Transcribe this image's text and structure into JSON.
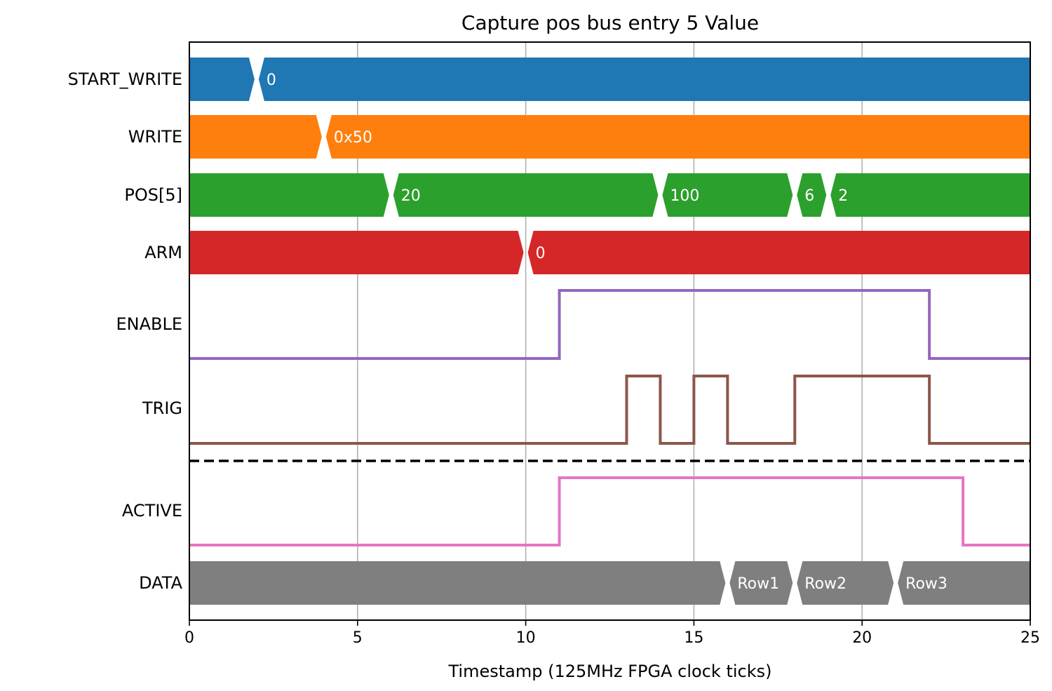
{
  "chart_data": {
    "type": "timing-diagram",
    "title": "Capture pos bus entry 5 Value",
    "xlabel": "Timestamp (125MHz FPGA clock ticks)",
    "xlim": [
      0,
      25
    ],
    "xticks": [
      0,
      5,
      10,
      15,
      20,
      25
    ],
    "grid": "vertical",
    "signals": [
      {
        "name": "START_WRITE",
        "kind": "bus",
        "color": "#1f77b4",
        "segments": [
          {
            "start": 0,
            "end": 2,
            "label": ""
          },
          {
            "start": 2,
            "end": 25,
            "label": "0"
          }
        ]
      },
      {
        "name": "WRITE",
        "kind": "bus",
        "color": "#ff7f0e",
        "segments": [
          {
            "start": 0,
            "end": 4,
            "label": ""
          },
          {
            "start": 4,
            "end": 25,
            "label": "0x50"
          }
        ]
      },
      {
        "name": "POS[5]",
        "kind": "bus",
        "color": "#2ca02c",
        "segments": [
          {
            "start": 0,
            "end": 6,
            "label": ""
          },
          {
            "start": 6,
            "end": 14,
            "label": "20"
          },
          {
            "start": 14,
            "end": 18,
            "label": "100"
          },
          {
            "start": 18,
            "end": 19,
            "label": "6"
          },
          {
            "start": 19,
            "end": 25,
            "label": "2"
          }
        ]
      },
      {
        "name": "ARM",
        "kind": "bus",
        "color": "#d62728",
        "segments": [
          {
            "start": 0,
            "end": 10,
            "label": ""
          },
          {
            "start": 10,
            "end": 25,
            "label": "0"
          }
        ]
      },
      {
        "name": "ENABLE",
        "kind": "bit",
        "color": "#9467bd",
        "transitions": [
          [
            0,
            0
          ],
          [
            11,
            1
          ],
          [
            22,
            0
          ]
        ]
      },
      {
        "name": "TRIG",
        "kind": "bit",
        "color": "#8c564b",
        "transitions": [
          [
            0,
            0
          ],
          [
            13,
            1
          ],
          [
            14,
            0
          ],
          [
            15,
            1
          ],
          [
            16,
            0
          ],
          [
            18,
            1
          ],
          [
            22,
            0
          ]
        ]
      },
      {
        "name": "ACTIVE",
        "kind": "bit",
        "color": "#e377c2",
        "transitions": [
          [
            0,
            0
          ],
          [
            11,
            1
          ],
          [
            23,
            0
          ]
        ]
      },
      {
        "name": "DATA",
        "kind": "bus",
        "color": "#7f7f7f",
        "segments": [
          {
            "start": 0,
            "end": 16,
            "label": ""
          },
          {
            "start": 16,
            "end": 18,
            "label": "Row1"
          },
          {
            "start": 18,
            "end": 21,
            "label": "Row2"
          },
          {
            "start": 21,
            "end": 25,
            "label": "Row3"
          }
        ]
      }
    ],
    "separator": {
      "after_signal": "TRIG",
      "style": "dashed"
    }
  }
}
